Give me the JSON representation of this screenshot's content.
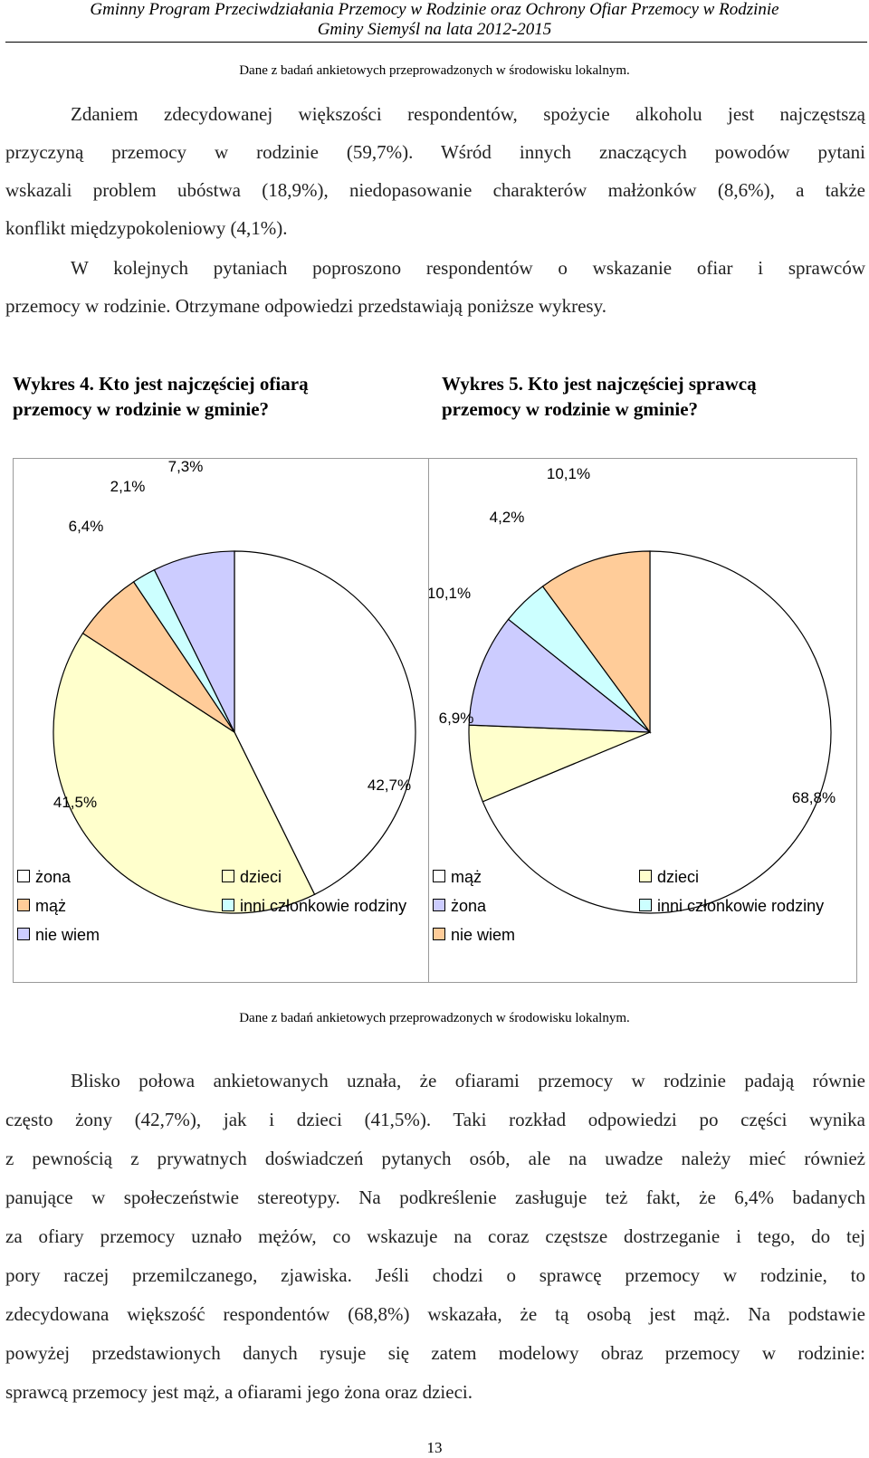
{
  "header": {
    "line1": "Gminny Program Przeciwdziałania Przemocy w Rodzinie oraz Ochrony Ofiar Przemocy w Rodzinie",
    "line2": "Gminy Siemyśl na lata 2012-2015"
  },
  "source_top": "Dane z badań ankietowych przeprowadzonych w środowisku lokalnym.",
  "para1": {
    "l1": "Zdaniem zdecydowanej większości respondentów, spożycie alkoholu jest najczęstszą",
    "l2": "przyczyną przemocy w rodzinie (59,7%). Wśród innych znaczących powodów pytani",
    "l3": "wskazali problem ubóstwa (18,9%), niedopasowanie charakterów małżonków (8,6%), a także",
    "l4": "konflikt międzypokoleniowy (4,1%)."
  },
  "para2": {
    "l1": "W kolejnych pytaniach poproszono respondentów o wskazanie ofiar i sprawców",
    "l2": "przemocy w rodzinie. Otrzymane odpowiedzi przedstawiają poniższe wykresy."
  },
  "chart4_title": {
    "l1": "Wykres 4. Kto jest najczęściej ofiarą",
    "l2": "przemocy w rodzinie w gminie?"
  },
  "chart5_title": {
    "l1": "Wykres 5. Kto jest najczęściej sprawcą",
    "l2": "przemocy w rodzinie w gminie?"
  },
  "chart_data": [
    {
      "type": "pie",
      "title": "Wykres 4. Kto jest najczęściej ofiarą przemocy w rodzinie w gminie?",
      "categories": [
        "żona",
        "dzieci",
        "mąż",
        "inni członkowie rodziny",
        "nie wiem"
      ],
      "values": [
        42.7,
        41.5,
        6.4,
        2.1,
        7.3
      ],
      "labels": [
        "42,7%",
        "41,5%",
        "6,4%",
        "2,1%",
        "7,3%"
      ],
      "colors": [
        "#ffffff",
        "#ffffcc",
        "#ffcc99",
        "#ccffff",
        "#ccccff"
      ],
      "legend": [
        {
          "label": "żona",
          "color": "#ffffff"
        },
        {
          "label": "dzieci",
          "color": "#ffffcc"
        },
        {
          "label": "mąż",
          "color": "#ffcc99"
        },
        {
          "label": "inni członkowie rodziny",
          "color": "#ccffff"
        },
        {
          "label": "nie wiem",
          "color": "#ccccff"
        }
      ],
      "legend_placement": "bottom"
    },
    {
      "type": "pie",
      "title": "Wykres 5. Kto jest najczęściej sprawcą przemocy w rodzinie w gminie?",
      "categories": [
        "mąż",
        "dzieci",
        "żona",
        "inni członkowie rodziny",
        "nie wiem"
      ],
      "values": [
        68.8,
        6.9,
        10.1,
        4.2,
        10.1
      ],
      "labels": [
        "68,8%",
        "6,9%",
        "10,1%",
        "4,2%",
        "10,1%"
      ],
      "colors": [
        "#ffffff",
        "#ffffcc",
        "#ccccff",
        "#ccffff",
        "#ffcc99"
      ],
      "legend": [
        {
          "label": "mąż",
          "color": "#ffffff"
        },
        {
          "label": "dzieci",
          "color": "#ffffcc"
        },
        {
          "label": "żona",
          "color": "#ccccff"
        },
        {
          "label": "inni członkowie rodziny",
          "color": "#ccffff"
        },
        {
          "label": "nie wiem",
          "color": "#ffcc99"
        }
      ],
      "legend_placement": "bottom"
    }
  ],
  "source_bottom": "Dane z badań ankietowych przeprowadzonych w środowisku lokalnym.",
  "para3": {
    "l1": "Blisko połowa ankietowanych uznała, że ofiarami przemocy w rodzinie padają równie",
    "l2": "często żony (42,7%), jak i dzieci (41,5%). Taki rozkład odpowiedzi po części wynika",
    "l3": "z pewnością z prywatnych doświadczeń pytanych osób, ale na uwadze należy mieć również",
    "l4": "panujące w społeczeństwie stereotypy. Na podkreślenie zasługuje też fakt, że 6,4% badanych",
    "l5": "za ofiary przemocy uznało mężów, co wskazuje na coraz częstsze dostrzeganie i tego, do tej",
    "l6": "pory raczej przemilczanego, zjawiska. Jeśli chodzi o sprawcę przemocy w rodzinie, to",
    "l7": "zdecydowana większość respondentów (68,8%) wskazała, że tą osobą jest mąż. Na podstawie",
    "l8": "powyżej przedstawionych danych rysuje się zatem modelowy obraz przemocy w rodzinie:",
    "l9": "sprawcą przemocy jest mąż, a ofiarami jego żona oraz dzieci."
  },
  "page_number": "13"
}
